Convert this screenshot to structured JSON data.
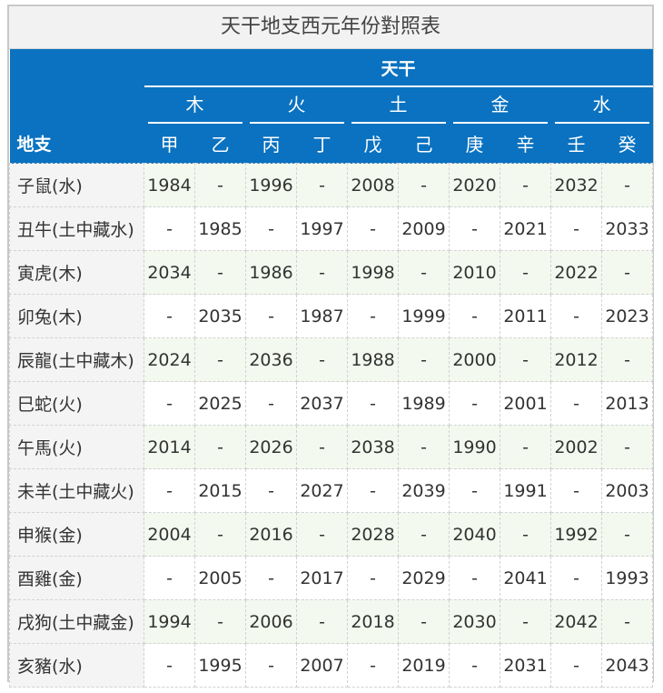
{
  "title": "天干地支西元年份對照表",
  "header": {
    "tiangan_label": "天干",
    "dizhi_label": "地支",
    "elements": [
      "木",
      "火",
      "土",
      "金",
      "水"
    ],
    "stems": [
      "甲",
      "乙",
      "丙",
      "丁",
      "戊",
      "己",
      "庚",
      "辛",
      "壬",
      "癸"
    ]
  },
  "rows": [
    {
      "branch": "子鼠(水)",
      "years": [
        "1984",
        "-",
        "1996",
        "-",
        "2008",
        "-",
        "2020",
        "-",
        "2032",
        "-"
      ]
    },
    {
      "branch": "丑牛(土中藏水)",
      "years": [
        "-",
        "1985",
        "-",
        "1997",
        "-",
        "2009",
        "-",
        "2021",
        "-",
        "2033"
      ]
    },
    {
      "branch": "寅虎(木)",
      "years": [
        "2034",
        "-",
        "1986",
        "-",
        "1998",
        "-",
        "2010",
        "-",
        "2022",
        "-"
      ]
    },
    {
      "branch": "卯兔(木)",
      "years": [
        "-",
        "2035",
        "-",
        "1987",
        "-",
        "1999",
        "-",
        "2011",
        "-",
        "2023"
      ]
    },
    {
      "branch": "辰龍(土中藏木)",
      "years": [
        "2024",
        "-",
        "2036",
        "-",
        "1988",
        "-",
        "2000",
        "-",
        "2012",
        "-"
      ]
    },
    {
      "branch": "巳蛇(火)",
      "years": [
        "-",
        "2025",
        "-",
        "2037",
        "-",
        "1989",
        "-",
        "2001",
        "-",
        "2013"
      ]
    },
    {
      "branch": "午馬(火)",
      "years": [
        "2014",
        "-",
        "2026",
        "-",
        "2038",
        "-",
        "1990",
        "-",
        "2002",
        "-"
      ]
    },
    {
      "branch": "未羊(土中藏火)",
      "years": [
        "-",
        "2015",
        "-",
        "2027",
        "-",
        "2039",
        "-",
        "1991",
        "-",
        "2003"
      ]
    },
    {
      "branch": "申猴(金)",
      "years": [
        "2004",
        "-",
        "2016",
        "-",
        "2028",
        "-",
        "2040",
        "-",
        "1992",
        "-"
      ]
    },
    {
      "branch": "酉雞(金)",
      "years": [
        "-",
        "2005",
        "-",
        "2017",
        "-",
        "2029",
        "-",
        "2041",
        "-",
        "1993"
      ]
    },
    {
      "branch": "戌狗(土中藏金)",
      "years": [
        "1994",
        "-",
        "2006",
        "-",
        "2018",
        "-",
        "2030",
        "-",
        "2042",
        "-"
      ]
    },
    {
      "branch": "亥豬(水)",
      "years": [
        "-",
        "1995",
        "-",
        "2007",
        "-",
        "2019",
        "-",
        "2031",
        "-",
        "2043"
      ]
    }
  ]
}
